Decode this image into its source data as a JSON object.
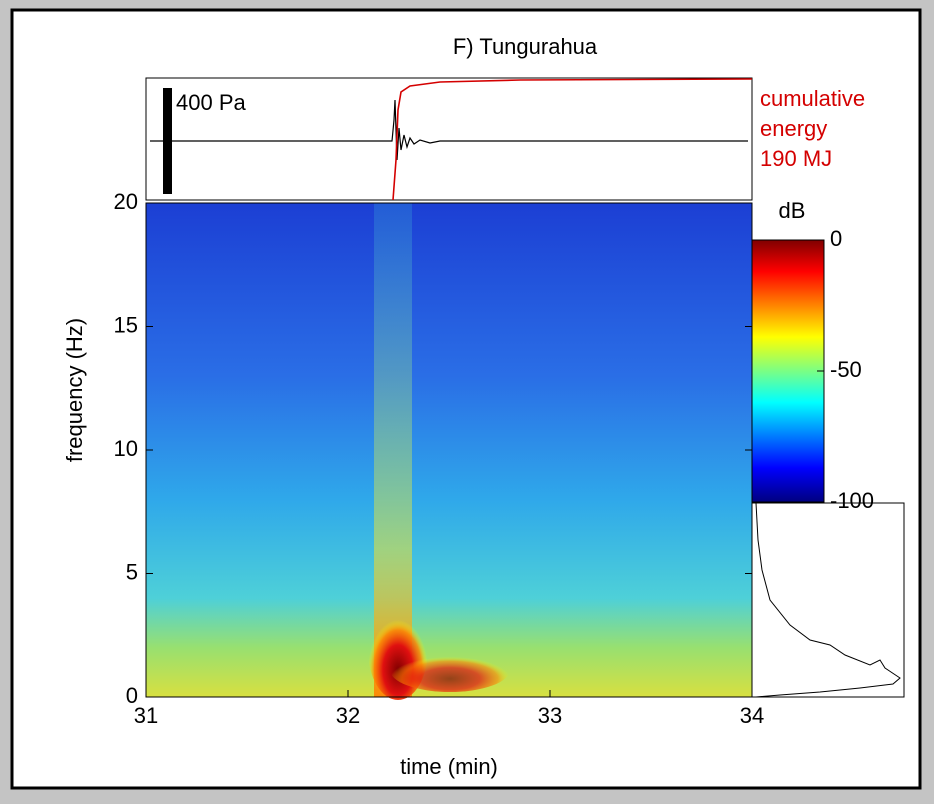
{
  "chart_data": {
    "type": "spectrogram",
    "title": "F) Tungurahua",
    "xlabel": "time (min)",
    "ylabel": "frequency (Hz)",
    "xlim": [
      31,
      34
    ],
    "xticks": [
      31,
      32,
      33,
      34
    ],
    "ylim": [
      0,
      20
    ],
    "yticks": [
      0,
      5,
      10,
      15,
      20
    ],
    "colorbar": {
      "label": "dB",
      "lim": [
        -100,
        0
      ],
      "ticks": [
        0,
        -50,
        -100
      ]
    },
    "scale_bar_label": "400 Pa",
    "annotation": [
      "cumulative",
      "energy",
      "190 MJ"
    ],
    "annotation_color": "#d40000"
  }
}
